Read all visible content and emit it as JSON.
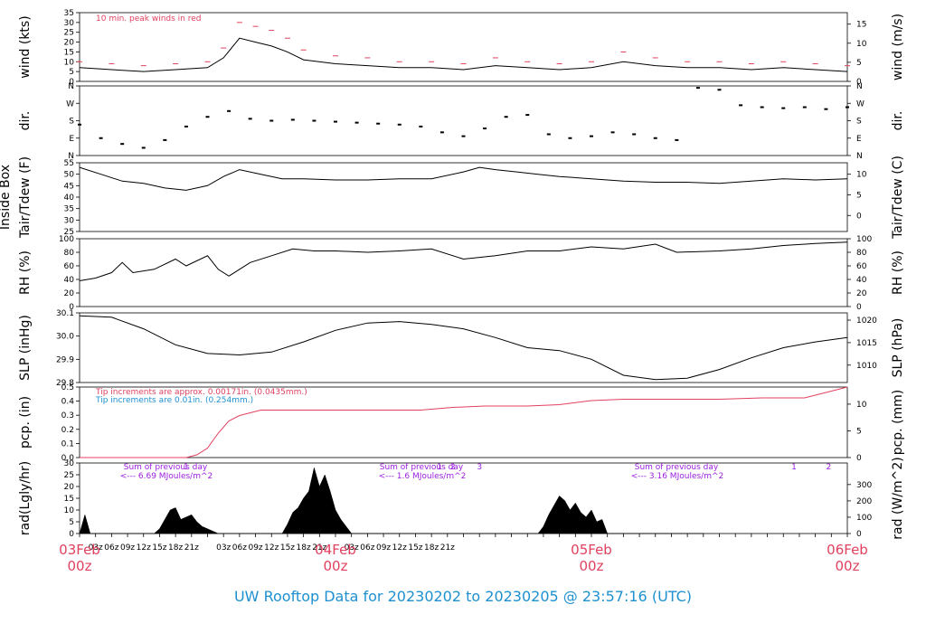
{
  "title": "UW Rooftop Data for 20230202  to  20230205 @ 23:57:16  (UTC)",
  "colors": {
    "red": "#e0415f",
    "blue": "#1e90d0",
    "purple": "#9a1fe0",
    "black": "#000000"
  },
  "x_axis": {
    "hour_labels": [
      "03z",
      "06z",
      "09z",
      "12z",
      "15z",
      "18z",
      "21z",
      "03z",
      "06z",
      "09z",
      "12z",
      "15z",
      "18z",
      "21z",
      "03z",
      "06z",
      "09z",
      "12z",
      "15z",
      "18z",
      "21z"
    ],
    "day_labels": [
      {
        "date": "03Feb",
        "hour": "00z"
      },
      {
        "date": "04Feb",
        "hour": "00z"
      },
      {
        "date": "05Feb",
        "hour": "00z"
      },
      {
        "date": "06Feb",
        "hour": "00z"
      }
    ]
  },
  "chart_data": [
    {
      "type": "line",
      "left_label": "wind (kts)",
      "right_label": "wind (m/s)",
      "left_ticks": [
        "0",
        "5",
        "10",
        "15",
        "20",
        "25",
        "30",
        "35"
      ],
      "right_ticks": [
        "0",
        "5",
        "10",
        "15"
      ],
      "ylim": [
        0,
        35
      ],
      "note": "10 min. peak winds in red",
      "series": [
        {
          "name": "wind speed",
          "color": "#000000",
          "x_hours": [
            0,
            6,
            12,
            18,
            24,
            27,
            30,
            33,
            36,
            39,
            42,
            48,
            54,
            60,
            66,
            72,
            78,
            84,
            90,
            96,
            102,
            108,
            114,
            120,
            126,
            132,
            138,
            144
          ],
          "values": [
            7,
            6,
            5,
            6,
            7,
            12,
            22,
            20,
            18,
            15,
            11,
            9,
            8,
            7,
            7,
            6,
            8,
            7,
            6,
            7,
            10,
            8,
            7,
            7,
            6,
            7,
            6,
            5
          ]
        },
        {
          "name": "10 min. peak",
          "color": "#e0415f",
          "x_hours": [
            0,
            6,
            12,
            18,
            24,
            27,
            30,
            33,
            36,
            39,
            42,
            48,
            54,
            60,
            66,
            72,
            78,
            84,
            90,
            96,
            102,
            108,
            114,
            120,
            126,
            132,
            138,
            144
          ],
          "values": [
            10,
            9,
            8,
            9,
            10,
            17,
            30,
            28,
            26,
            22,
            16,
            13,
            12,
            10,
            10,
            9,
            12,
            10,
            9,
            10,
            15,
            12,
            10,
            10,
            9,
            10,
            9,
            8
          ]
        }
      ]
    },
    {
      "type": "scatter",
      "left_label": "dir.",
      "right_label": "dir.",
      "left_ticks": [
        "N",
        "E",
        "S",
        "W",
        "N"
      ],
      "right_ticks": [
        "N",
        "E",
        "S",
        "W",
        "N"
      ],
      "ylim": [
        0,
        360
      ],
      "series": [
        {
          "name": "direction",
          "color": "#000000",
          "x_hours": [
            0,
            4,
            8,
            12,
            16,
            20,
            24,
            28,
            32,
            36,
            40,
            44,
            48,
            52,
            56,
            60,
            64,
            68,
            72,
            76,
            80,
            84,
            88,
            92,
            96,
            100,
            104,
            108,
            112,
            116,
            120,
            124,
            128,
            132,
            136,
            140,
            144
          ],
          "values": [
            160,
            90,
            60,
            40,
            80,
            150,
            200,
            230,
            190,
            180,
            185,
            180,
            175,
            170,
            165,
            160,
            150,
            120,
            100,
            140,
            200,
            210,
            110,
            90,
            100,
            120,
            110,
            90,
            80,
            350,
            340,
            260,
            250,
            245,
            250,
            240,
            250
          ]
        }
      ]
    },
    {
      "type": "line",
      "left_label": "Inside Box\nTair/Tdew (F)",
      "right_label": "Tair/Tdew (C)",
      "left_ticks": [
        "25",
        "30",
        "35",
        "40",
        "45",
        "50",
        "55"
      ],
      "right_ticks": [
        "0",
        "5",
        "10"
      ],
      "ylim": [
        25,
        55
      ],
      "series": [
        {
          "name": "Tair",
          "color": "#000000",
          "x_hours": [
            0,
            4,
            8,
            12,
            16,
            20,
            24,
            27,
            30,
            34,
            38,
            42,
            48,
            54,
            60,
            66,
            72,
            75,
            78,
            82,
            86,
            90,
            96,
            102,
            108,
            114,
            120,
            126,
            132,
            138,
            144
          ],
          "values": [
            53,
            50,
            47,
            46,
            44,
            43,
            45,
            49,
            52,
            50,
            48,
            48,
            47.5,
            47.5,
            48,
            48,
            51,
            53,
            52,
            51,
            50,
            49,
            48,
            47,
            46.5,
            46.5,
            46,
            47,
            48,
            47.5,
            48
          ]
        }
      ]
    },
    {
      "type": "line",
      "left_label": "RH (%)",
      "right_label": "RH (%)",
      "left_ticks": [
        "0",
        "20",
        "40",
        "60",
        "80",
        "100"
      ],
      "right_ticks": [
        "0",
        "20",
        "40",
        "60",
        "80",
        "100"
      ],
      "ylim": [
        0,
        100
      ],
      "series": [
        {
          "name": "RH",
          "color": "#000000",
          "x_hours": [
            0,
            3,
            6,
            8,
            10,
            14,
            18,
            20,
            24,
            26,
            28,
            32,
            36,
            40,
            44,
            48,
            54,
            60,
            66,
            72,
            78,
            84,
            90,
            96,
            102,
            108,
            112,
            120,
            126,
            132,
            138,
            144
          ],
          "values": [
            38,
            42,
            50,
            65,
            50,
            55,
            70,
            60,
            75,
            55,
            45,
            65,
            75,
            85,
            82,
            82,
            80,
            82,
            85,
            70,
            75,
            82,
            82,
            88,
            85,
            92,
            80,
            82,
            85,
            90,
            93,
            95
          ]
        }
      ]
    },
    {
      "type": "line",
      "left_label": "SLP (inHg)",
      "right_label": "SLP (hPa)",
      "left_ticks": [
        "29.8",
        "29.9",
        "30.0",
        "30.1"
      ],
      "right_ticks": [
        "1010",
        "1015",
        "1020"
      ],
      "ylim": [
        29.71,
        30.19
      ],
      "series": [
        {
          "name": "SLP",
          "color": "#000000",
          "x_hours": [
            0,
            6,
            12,
            18,
            24,
            30,
            36,
            42,
            48,
            54,
            60,
            66,
            72,
            78,
            84,
            90,
            96,
            102,
            108,
            114,
            120,
            126,
            132,
            138,
            144
          ],
          "values": [
            30.17,
            30.16,
            30.08,
            29.97,
            29.91,
            29.9,
            29.92,
            29.99,
            30.07,
            30.12,
            30.13,
            30.11,
            30.08,
            30.02,
            29.95,
            29.93,
            29.87,
            29.76,
            29.73,
            29.74,
            29.8,
            29.88,
            29.95,
            29.99,
            30.02
          ]
        }
      ]
    },
    {
      "type": "line",
      "left_label": "pcp. (in)",
      "right_label": "pcp. (mm)",
      "left_ticks": [
        "0.0",
        "0.1",
        "0.2",
        "0.3",
        "0.4",
        "0.5"
      ],
      "right_ticks": [
        "0",
        "5",
        "10"
      ],
      "ylim": [
        0,
        0.52
      ],
      "notes": [
        "Tip increments are approx. 0.00171in. (0.0435mm.)",
        "Tip increments are 0.01in. (0.254mm.)"
      ],
      "series": [
        {
          "name": "precip",
          "color": "#e0415f",
          "x_hours": [
            0,
            12,
            20,
            22,
            24,
            26,
            28,
            30,
            32,
            34,
            36,
            44,
            50,
            60,
            64,
            70,
            76,
            84,
            90,
            96,
            102,
            112,
            120,
            128,
            136,
            140,
            144
          ],
          "values": [
            0,
            0,
            0,
            0.02,
            0.07,
            0.18,
            0.27,
            0.31,
            0.33,
            0.35,
            0.35,
            0.35,
            0.35,
            0.35,
            0.35,
            0.37,
            0.38,
            0.38,
            0.39,
            0.42,
            0.43,
            0.43,
            0.43,
            0.44,
            0.44,
            0.48,
            0.52
          ]
        }
      ]
    },
    {
      "type": "area",
      "left_label": "rad(Lgly/hr)",
      "right_label": "rad (W/m^2)",
      "left_ticks": [
        "0",
        "5",
        "10",
        "15",
        "20",
        "25",
        "30"
      ],
      "right_ticks": [
        "0",
        "100",
        "200",
        "300"
      ],
      "ylim": [
        0,
        30
      ],
      "annotations": [
        {
          "label": "Sum of previous day",
          "value": "<--- 6.69 MJoules/m^2"
        },
        {
          "label": "Sum of previous day",
          "value": "<--- 1.6 MJoules/m^2"
        },
        {
          "label": "Sum of previous day",
          "value": "<--- 3.16 MJoules/m^2"
        }
      ],
      "markers": [
        {
          "text": "1",
          "x_hour": 20
        },
        {
          "text": "1",
          "x_hour": 67.5
        },
        {
          "text": "2",
          "x_hour": 70
        },
        {
          "text": "3",
          "x_hour": 75
        },
        {
          "text": "1",
          "x_hour": 134
        },
        {
          "text": "2",
          "x_hour": 140.5
        }
      ],
      "series": [
        {
          "name": "radiation",
          "color": "#000000",
          "x_hours": [
            0,
            1,
            2,
            14,
            15,
            16,
            17,
            18,
            19,
            20,
            21,
            22,
            23,
            24,
            25,
            26,
            38,
            39,
            40,
            41,
            42,
            43,
            44,
            45,
            46,
            47,
            48,
            49,
            50,
            51,
            86,
            87,
            88,
            89,
            90,
            91,
            92,
            93,
            94,
            95,
            96,
            97,
            98,
            99,
            110,
            111,
            112,
            113,
            114,
            115,
            116,
            117
          ],
          "values": [
            0,
            8,
            0,
            0,
            2,
            6,
            10,
            11,
            6,
            7,
            8,
            5,
            3,
            2,
            1,
            0,
            0,
            4,
            9,
            11,
            15,
            18,
            28,
            20,
            25,
            18,
            10,
            6,
            3,
            0,
            0,
            3,
            8,
            12,
            16,
            14,
            10,
            13,
            9,
            7,
            10,
            5,
            6,
            0,
            0,
            0,
            0,
            0,
            0,
            0,
            0,
            0
          ]
        }
      ]
    }
  ]
}
